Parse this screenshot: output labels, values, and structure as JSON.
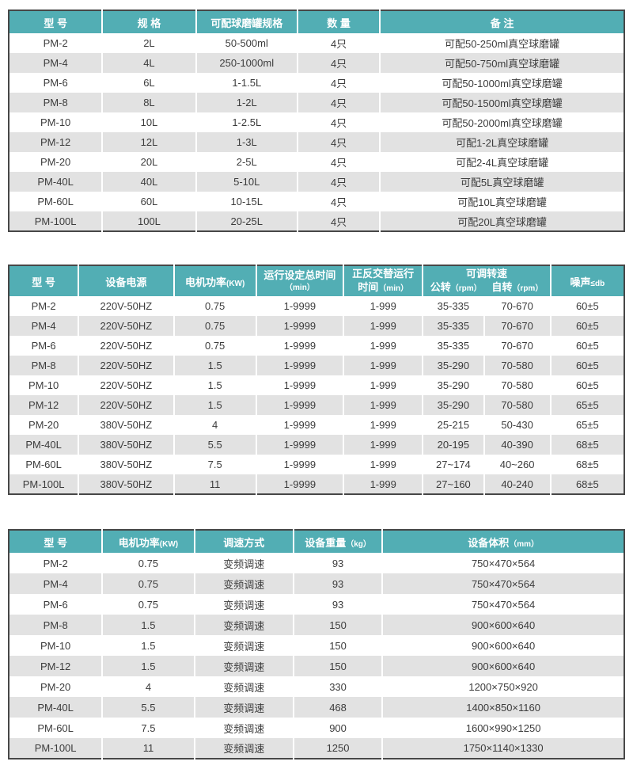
{
  "colors": {
    "header_bg": "#52aeb4",
    "header_text": "#ffffff",
    "row_alt_bg": "#e2e2e2",
    "border_dark": "#474747",
    "body_text": "#3c3c3c"
  },
  "table1": {
    "headers": {
      "model": "型 号",
      "spec": "规 格",
      "jar_spec": "可配球磨罐规格",
      "quantity": "数 量",
      "remark": "备  注"
    },
    "rows": [
      [
        "PM-2",
        "2L",
        "50-500ml",
        "4只",
        "可配50-250ml真空球磨罐"
      ],
      [
        "PM-4",
        "4L",
        "250-1000ml",
        "4只",
        "可配50-750ml真空球磨罐"
      ],
      [
        "PM-6",
        "6L",
        "1-1.5L",
        "4只",
        "可配50-1000ml真空球磨罐"
      ],
      [
        "PM-8",
        "8L",
        "1-2L",
        "4只",
        "可配50-1500ml真空球磨罐"
      ],
      [
        "PM-10",
        "10L",
        "1-2.5L",
        "4只",
        "可配50-2000ml真空球磨罐"
      ],
      [
        "PM-12",
        "12L",
        "1-3L",
        "4只",
        "可配1-2L真空球磨罐"
      ],
      [
        "PM-20",
        "20L",
        "2-5L",
        "4只",
        "可配2-4L真空球磨罐"
      ],
      [
        "PM-40L",
        "40L",
        "5-10L",
        "4只",
        "可配5L真空球磨罐"
      ],
      [
        "PM-60L",
        "60L",
        "10-15L",
        "4只",
        "可配10L真空球磨罐"
      ],
      [
        "PM-100L",
        "100L",
        "20-25L",
        "4只",
        "可配20L真空球磨罐"
      ]
    ]
  },
  "table2": {
    "headers": {
      "model": "型 号",
      "power_supply": "设备电源",
      "motor_power": "电机功率",
      "motor_power_unit": "(KW)",
      "total_time_line1": "运行设定总时间",
      "total_time_line2": "（min）",
      "alt_time_line1": "正反交替运行",
      "alt_time_line2_main": "时间",
      "alt_time_line2_unit": "（min）",
      "speed_title": "可调转速",
      "speed_sub_left_main": "公转",
      "speed_sub_left_unit": "（rpm）",
      "speed_sub_right_main": "自转",
      "speed_sub_right_unit": "（rpm）",
      "noise_main": "噪声",
      "noise_unit": "≤db"
    },
    "rows": [
      [
        "PM-2",
        "220V-50HZ",
        "0.75",
        "1-9999",
        "1-999",
        "35-335",
        "70-670",
        "60±5"
      ],
      [
        "PM-4",
        "220V-50HZ",
        "0.75",
        "1-9999",
        "1-999",
        "35-335",
        "70-670",
        "60±5"
      ],
      [
        "PM-6",
        "220V-50HZ",
        "0.75",
        "1-9999",
        "1-999",
        "35-335",
        "70-670",
        "60±5"
      ],
      [
        "PM-8",
        "220V-50HZ",
        "1.5",
        "1-9999",
        "1-999",
        "35-290",
        "70-580",
        "60±5"
      ],
      [
        "PM-10",
        "220V-50HZ",
        "1.5",
        "1-9999",
        "1-999",
        "35-290",
        "70-580",
        "60±5"
      ],
      [
        "PM-12",
        "220V-50HZ",
        "1.5",
        "1-9999",
        "1-999",
        "35-290",
        "70-580",
        "65±5"
      ],
      [
        "PM-20",
        "380V-50HZ",
        "4",
        "1-9999",
        "1-999",
        "25-215",
        "50-430",
        "65±5"
      ],
      [
        "PM-40L",
        "380V-50HZ",
        "5.5",
        "1-9999",
        "1-999",
        "20-195",
        "40-390",
        "68±5"
      ],
      [
        "PM-60L",
        "380V-50HZ",
        "7.5",
        "1-9999",
        "1-999",
        "27~174",
        "40~260",
        "68±5"
      ],
      [
        "PM-100L",
        "380V-50HZ",
        "11",
        "1-9999",
        "1-999",
        "27~160",
        "40-240",
        "68±5"
      ]
    ]
  },
  "table3": {
    "headers": {
      "model": "型 号",
      "motor_power": "电机功率",
      "motor_power_unit": "(KW)",
      "speed_mode": "调速方式",
      "weight": "设备重量",
      "weight_unit": "（kg）",
      "volume": "设备体积",
      "volume_unit": "（mm）"
    },
    "rows": [
      [
        "PM-2",
        "0.75",
        "变频调速",
        "93",
        "750×470×564"
      ],
      [
        "PM-4",
        "0.75",
        "变频调速",
        "93",
        "750×470×564"
      ],
      [
        "PM-6",
        "0.75",
        "变频调速",
        "93",
        "750×470×564"
      ],
      [
        "PM-8",
        "1.5",
        "变频调速",
        "150",
        "900×600×640"
      ],
      [
        "PM-10",
        "1.5",
        "变频调速",
        "150",
        "900×600×640"
      ],
      [
        "PM-12",
        "1.5",
        "变频调速",
        "150",
        "900×600×640"
      ],
      [
        "PM-20",
        "4",
        "变频调速",
        "330",
        "1200×750×920"
      ],
      [
        "PM-40L",
        "5.5",
        "变频调速",
        "468",
        "1400×850×1160"
      ],
      [
        "PM-60L",
        "7.5",
        "变频调速",
        "900",
        "1600×990×1250"
      ],
      [
        "PM-100L",
        "11",
        "变频调速",
        "1250",
        "1750×1140×1330"
      ]
    ]
  }
}
